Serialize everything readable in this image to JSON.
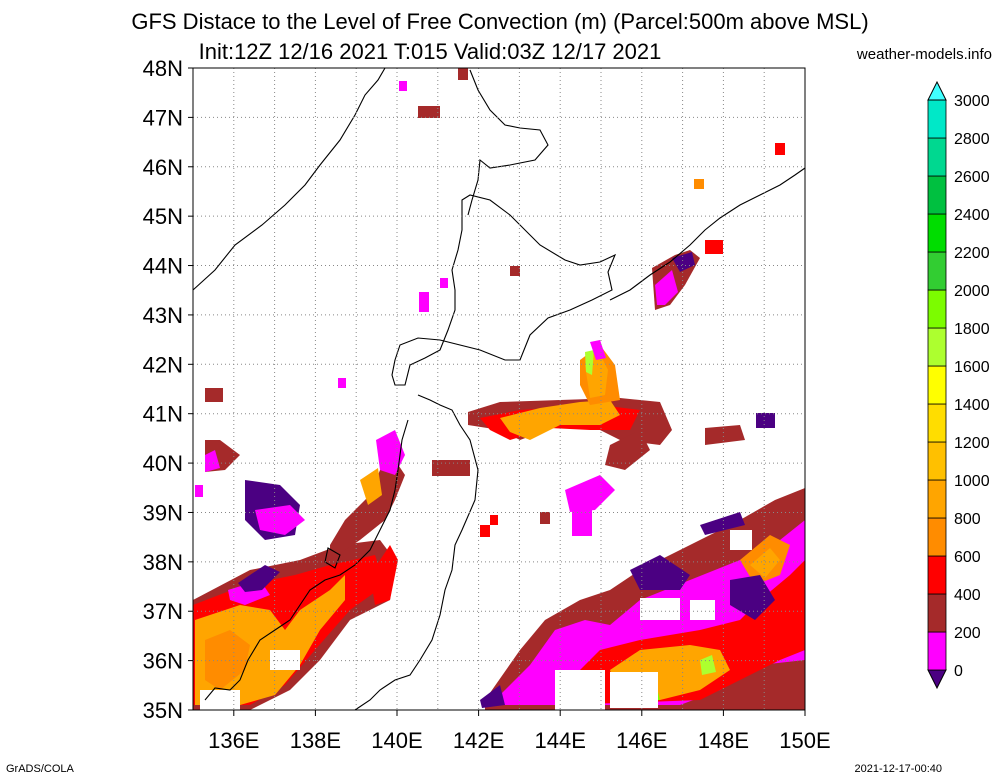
{
  "title": "GFS Distace to the Level of Free Convection (m) (Parcel:500m above MSL)",
  "subtitle": "Init:12Z 12/16 2021 T:015 Valid:03Z 12/17 2021",
  "site": "weather-models.info",
  "footer_left": "GrADS/COLA",
  "footer_right": "2021-12-17-00:40",
  "map": {
    "lon_range": [
      135,
      150
    ],
    "lat_range": [
      35,
      48
    ],
    "grid": "dotted",
    "lat_ticks": [
      "35N",
      "36N",
      "37N",
      "38N",
      "39N",
      "40N",
      "41N",
      "42N",
      "43N",
      "44N",
      "45N",
      "46N",
      "47N",
      "48N"
    ],
    "lon_ticks": [
      "136E",
      "138E",
      "140E",
      "142E",
      "144E",
      "146E",
      "148E",
      "150E"
    ]
  },
  "colorbar": {
    "labels": [
      "0",
      "200",
      "400",
      "600",
      "800",
      "1000",
      "1200",
      "1400",
      "1600",
      "1800",
      "2000",
      "2200",
      "2400",
      "2600",
      "2800",
      "3000"
    ],
    "colors": [
      "#4b0082",
      "#ff00ff",
      "#a52a2a",
      "#ff0000",
      "#ff8c00",
      "#ffa500",
      "#ffc000",
      "#ffdd00",
      "#ffff00",
      "#adff2f",
      "#7cfc00",
      "#32cd32",
      "#00dd00",
      "#00c040",
      "#00d890",
      "#00e8c8",
      "#40ffff"
    ]
  },
  "field_colors": {
    "purple": "#4b0082",
    "magenta": "#ff00ff",
    "brown": "#a52a2a",
    "red": "#ff0000",
    "darkorange": "#ff8c00",
    "orange": "#ffa500",
    "yellow": "#ffff00",
    "green": "#7cfc00"
  }
}
